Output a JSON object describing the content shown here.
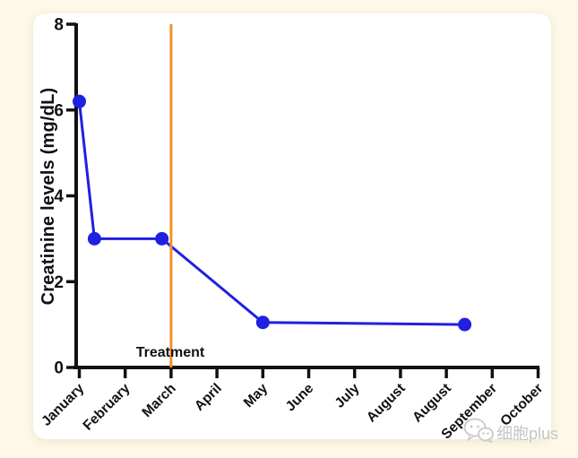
{
  "page": {
    "background_color": "#fdf8e7",
    "card_color": "#ffffff"
  },
  "chart_data": {
    "type": "line",
    "title": "",
    "xlabel": "",
    "ylabel": "Creatinine levels (mg/dL)",
    "ylim": [
      0,
      8
    ],
    "y_ticks": [
      0,
      2,
      4,
      6,
      8
    ],
    "x_tick_labels": [
      "January",
      "February",
      "March",
      "April",
      "May",
      "June",
      "July",
      "August",
      "August",
      "September",
      "October"
    ],
    "grid": false,
    "legend": false,
    "axis_color": "#111111",
    "series": [
      {
        "name": "Creatinine levels",
        "color": "#2020e0",
        "marker": "circle",
        "points": [
          [
            0,
            6.2
          ],
          [
            0.33,
            3.0
          ],
          [
            1.8,
            3.0
          ],
          [
            4.0,
            1.05
          ],
          [
            8.4,
            1.0
          ]
        ]
      }
    ],
    "annotations": [
      {
        "type": "vline",
        "x_month": 2,
        "color": "#ef9228",
        "label": "Treatment"
      }
    ]
  },
  "watermark": {
    "icon": "wechat-icon",
    "text": "细胞plus",
    "color": "#c6c6c6"
  }
}
